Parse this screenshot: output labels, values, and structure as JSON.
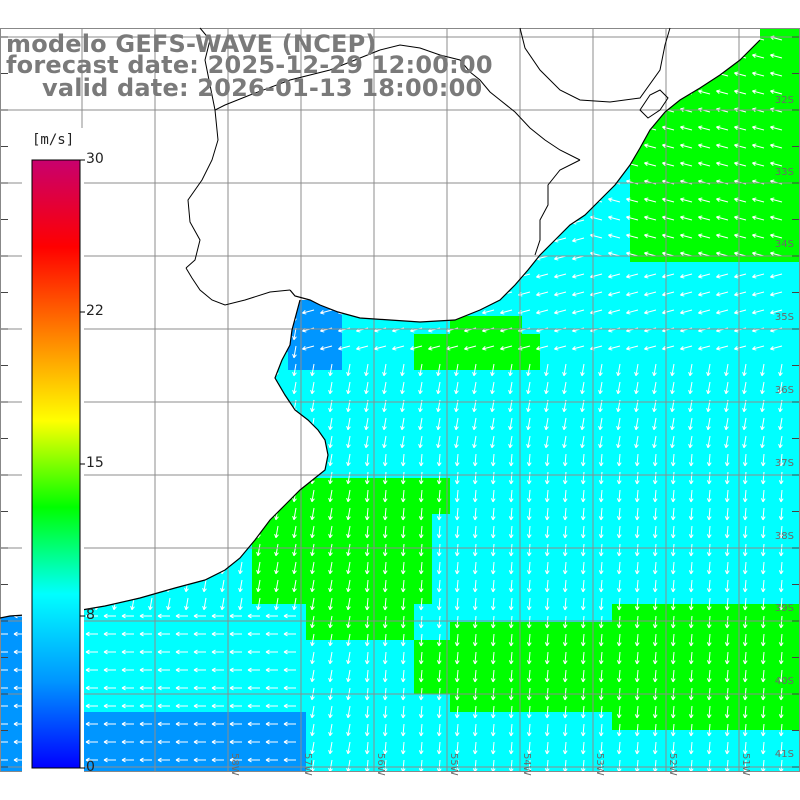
{
  "title": {
    "line1": "modelo GEFS-WAVE (NCEP)",
    "line2": "forecast date: 2025-12-29 12:00:00",
    "line3": "valid date: 2026-01-13 18:00:00"
  },
  "colorbar": {
    "units": "[m/s]",
    "ticks": [
      "30",
      "22",
      "15",
      "8",
      "0"
    ],
    "tick_values": [
      30,
      22,
      15,
      8,
      0
    ],
    "colors": [
      "#0000ff",
      "#0096ff",
      "#00ffff",
      "#00ff00",
      "#ffff00",
      "#ff8000",
      "#ff0000",
      "#c8006e"
    ]
  },
  "lat_labels": [
    "32S",
    "33S",
    "34S",
    "35S",
    "36S",
    "37S",
    "38S",
    "39S",
    "40S",
    "41S"
  ],
  "lon_labels": [
    "58W",
    "57W",
    "56W",
    "55W",
    "54W",
    "53W",
    "52W",
    "51W"
  ],
  "colors": {
    "land": "#ffffff",
    "coastline": "#000000",
    "grid": "#8c8c8c",
    "arrows": "#ffffff",
    "label_gray": "#7a7a7a"
  }
}
